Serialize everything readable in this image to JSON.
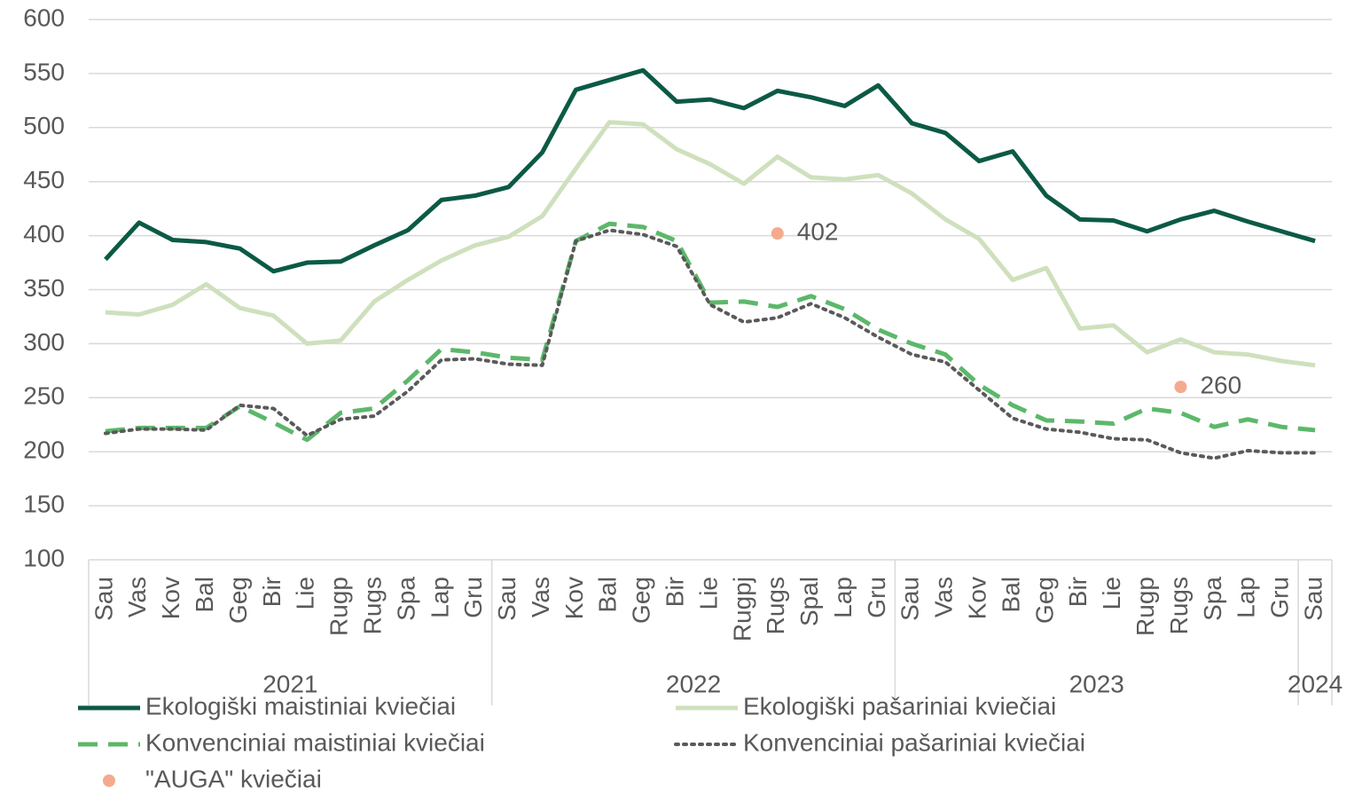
{
  "chart_data": {
    "type": "line",
    "categories": [
      "Sau",
      "Vas",
      "Kov",
      "Bal",
      "Geg",
      "Bir",
      "Lie",
      "Rugp",
      "Rugs",
      "Spa",
      "Lap",
      "Gru",
      "Sau",
      "Vas",
      "Kov",
      "Bal",
      "Geg",
      "Bir",
      "Lie",
      "Rugpj",
      "Rugs",
      "Spal",
      "Lap",
      "Gru",
      "Sau",
      "Vas",
      "Kov",
      "Bal",
      "Geg",
      "Bir",
      "Lie",
      "Rugp",
      "Rugs",
      "Spa",
      "Lap",
      "Gru",
      "Sau"
    ],
    "category_groups": [
      {
        "name": "2021",
        "size": 12
      },
      {
        "name": "2022",
        "size": 12
      },
      {
        "name": "2023",
        "size": 12
      },
      {
        "name": "2024",
        "size": 1
      }
    ],
    "series": [
      {
        "name": "Ekologiški maistiniai kviečiai",
        "color": "#0b5a45",
        "style": "solid",
        "values": [
          378,
          412,
          396,
          394,
          388,
          367,
          375,
          376,
          391,
          405,
          433,
          437,
          445,
          477,
          535,
          544,
          553,
          524,
          526,
          518,
          534,
          528,
          520,
          539,
          504,
          495,
          469,
          478,
          437,
          415,
          414,
          404,
          415,
          423,
          413,
          404,
          395
        ]
      },
      {
        "name": "Ekologiški pašariniai kviečiai",
        "color": "#cfe0bd",
        "style": "solid",
        "values": [
          329,
          327,
          336,
          355,
          333,
          326,
          300,
          303,
          339,
          359,
          377,
          391,
          399,
          418,
          462,
          505,
          503,
          480,
          466,
          448,
          473,
          454,
          452,
          456,
          439,
          415,
          397,
          359,
          370,
          314,
          317,
          292,
          304,
          292,
          290,
          284,
          280
        ]
      },
      {
        "name": "Konvenciniai maistiniai kviečiai",
        "color": "#5cb86a",
        "style": "dashed",
        "values": [
          219,
          222,
          222,
          222,
          242,
          227,
          211,
          236,
          240,
          266,
          295,
          292,
          287,
          285,
          395,
          411,
          408,
          395,
          338,
          339,
          334,
          344,
          332,
          313,
          300,
          290,
          262,
          243,
          229,
          228,
          226,
          240,
          236,
          223,
          230,
          223,
          220
        ]
      },
      {
        "name": "Konvenciniai pašariniai kviečiai",
        "color": "#5a5a5a",
        "style": "dotted",
        "values": [
          217,
          221,
          221,
          220,
          243,
          240,
          215,
          230,
          233,
          256,
          285,
          286,
          281,
          280,
          395,
          405,
          401,
          390,
          336,
          320,
          324,
          337,
          324,
          306,
          290,
          283,
          257,
          231,
          221,
          218,
          212,
          211,
          199,
          194,
          201,
          199,
          199
        ]
      },
      {
        "name": "\"AUGA\" kviečiai",
        "color": "#f4aa8e",
        "style": "markers",
        "values": [
          null,
          null,
          null,
          null,
          null,
          null,
          null,
          null,
          null,
          null,
          null,
          null,
          null,
          null,
          null,
          null,
          null,
          null,
          null,
          null,
          402,
          null,
          null,
          null,
          null,
          null,
          null,
          null,
          null,
          null,
          null,
          null,
          260,
          null,
          null,
          null,
          null
        ]
      }
    ],
    "ylim": [
      100,
      600
    ],
    "yticks": [
      100,
      150,
      200,
      250,
      300,
      350,
      400,
      450,
      500,
      550,
      600
    ],
    "grid": true
  }
}
